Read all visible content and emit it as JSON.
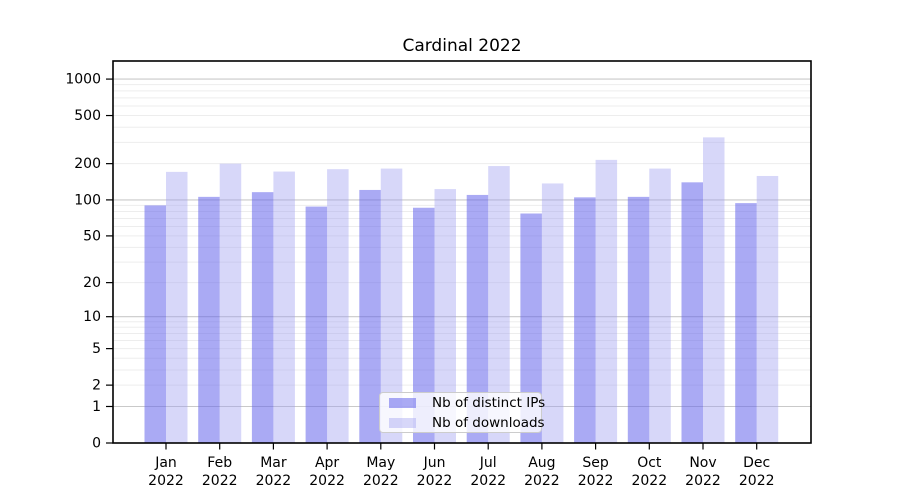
{
  "title": "Cardinal 2022",
  "chart_data": {
    "type": "bar",
    "title": "Cardinal 2022",
    "xlabel": "",
    "ylabel": "",
    "y_scale": "symlog (log1p)",
    "ylim": [
      0,
      1410
    ],
    "grid": true,
    "legend_position": "inside-bottom-center",
    "yticks": [
      0,
      1,
      2,
      5,
      10,
      20,
      50,
      100,
      200,
      500,
      1000
    ],
    "categories": [
      {
        "month": "Jan",
        "year": "2022"
      },
      {
        "month": "Feb",
        "year": "2022"
      },
      {
        "month": "Mar",
        "year": "2022"
      },
      {
        "month": "Apr",
        "year": "2022"
      },
      {
        "month": "May",
        "year": "2022"
      },
      {
        "month": "Jun",
        "year": "2022"
      },
      {
        "month": "Jul",
        "year": "2022"
      },
      {
        "month": "Aug",
        "year": "2022"
      },
      {
        "month": "Sep",
        "year": "2022"
      },
      {
        "month": "Oct",
        "year": "2022"
      },
      {
        "month": "Nov",
        "year": "2022"
      },
      {
        "month": "Dec",
        "year": "2022"
      }
    ],
    "series": [
      {
        "name": "Nb of distinct IPs",
        "color": "rgba(100,100,235,0.55)",
        "values": [
          90,
          106,
          116,
          88,
          121,
          86,
          110,
          77,
          105,
          106,
          140,
          94
        ]
      },
      {
        "name": "Nb of downloads",
        "color": "rgba(160,160,240,0.42)",
        "values": [
          171,
          200,
          172,
          180,
          182,
          123,
          191,
          137,
          215,
          182,
          330,
          158
        ]
      }
    ],
    "colors": {
      "major_grid": "#c9c9c9",
      "minor_grid": "#ededed",
      "spine": "#000000"
    }
  }
}
